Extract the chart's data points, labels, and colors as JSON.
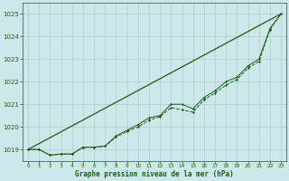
{
  "title": "Graphe pression niveau de la mer (hPa)",
  "xlim": [
    -0.5,
    23.5
  ],
  "ylim": [
    1018.5,
    1025.5
  ],
  "yticks": [
    1019,
    1020,
    1021,
    1022,
    1023,
    1024,
    1025
  ],
  "xticks": [
    0,
    1,
    2,
    3,
    4,
    5,
    6,
    7,
    8,
    9,
    10,
    11,
    12,
    13,
    14,
    15,
    16,
    17,
    18,
    19,
    20,
    21,
    22,
    23
  ],
  "background_color": "#cce8e8",
  "grid_color": "#b0cccc",
  "line_color": "#1a5c1a",
  "text_color": "#1a5c1a",
  "series_main": [
    [
      0,
      1019.0
    ],
    [
      1,
      1019.0
    ],
    [
      2,
      1018.75
    ],
    [
      3,
      1018.8
    ],
    [
      4,
      1018.8
    ],
    [
      5,
      1019.1
    ],
    [
      6,
      1019.1
    ],
    [
      7,
      1019.15
    ],
    [
      8,
      1019.6
    ],
    [
      9,
      1019.85
    ],
    [
      10,
      1020.1
    ],
    [
      11,
      1020.4
    ],
    [
      12,
      1020.5
    ],
    [
      13,
      1021.0
    ],
    [
      14,
      1021.0
    ],
    [
      15,
      1020.8
    ],
    [
      16,
      1021.3
    ],
    [
      17,
      1021.6
    ],
    [
      18,
      1022.0
    ],
    [
      19,
      1022.2
    ],
    [
      20,
      1022.7
    ],
    [
      21,
      1023.0
    ],
    [
      22,
      1024.35
    ],
    [
      23,
      1025.0
    ]
  ],
  "series_secondary": [
    [
      0,
      1019.0
    ],
    [
      1,
      1019.0
    ],
    [
      2,
      1018.75
    ],
    [
      3,
      1018.8
    ],
    [
      4,
      1018.8
    ],
    [
      5,
      1019.1
    ],
    [
      6,
      1019.1
    ],
    [
      7,
      1019.15
    ],
    [
      8,
      1019.55
    ],
    [
      9,
      1019.8
    ],
    [
      10,
      1020.0
    ],
    [
      11,
      1020.3
    ],
    [
      12,
      1020.45
    ],
    [
      13,
      1020.85
    ],
    [
      14,
      1020.75
    ],
    [
      15,
      1020.65
    ],
    [
      16,
      1021.2
    ],
    [
      17,
      1021.5
    ],
    [
      18,
      1021.85
    ],
    [
      19,
      1022.1
    ],
    [
      20,
      1022.6
    ],
    [
      21,
      1022.9
    ],
    [
      22,
      1024.3
    ],
    [
      23,
      1025.0
    ]
  ],
  "trend_line": [
    [
      0,
      1019.0
    ],
    [
      23,
      1025.0
    ]
  ]
}
